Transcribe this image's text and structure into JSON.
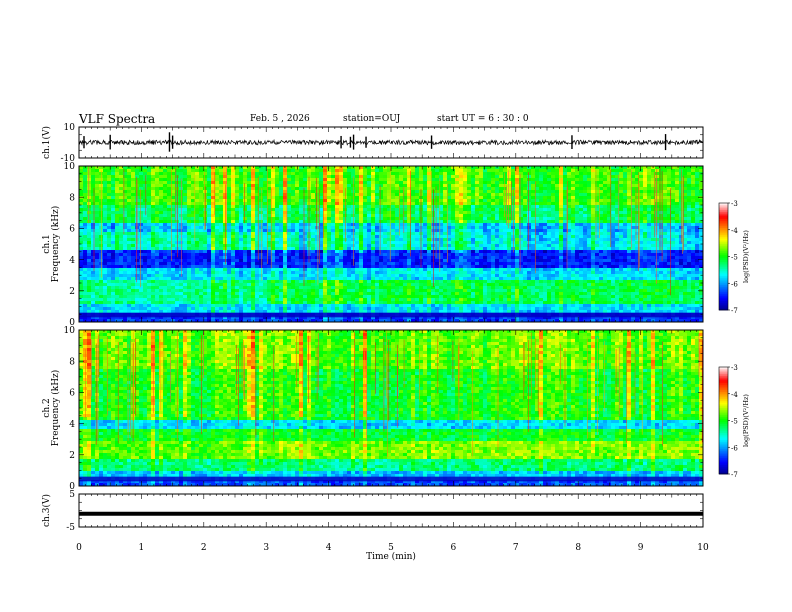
{
  "header": {
    "title": "VLF Spectra",
    "date": "Feb. 5 , 2026",
    "station": "station=OUJ",
    "start": "start UT =  6 : 30 : 0"
  },
  "colors": {
    "colormap": [
      "#00008f",
      "#0000ff",
      "#00ffff",
      "#00ff00",
      "#ffff00",
      "#ff0000",
      "#ffffff"
    ],
    "trace": "#000000"
  },
  "chart_data": [
    {
      "type": "line",
      "name": "ch1-waveform",
      "ylabel": "ch.1(V)",
      "ylim": [
        -10,
        10
      ],
      "yticks": [
        "10",
        "-10"
      ],
      "xlim": [
        0,
        10
      ],
      "baseline": 0,
      "approx_band": [
        -1.5,
        1.5
      ],
      "spikes_t_min": [
        0.08,
        0.5,
        1.45,
        1.5,
        4.2,
        4.35,
        4.4,
        4.6,
        5.65,
        7.9,
        9.4
      ]
    },
    {
      "type": "heatmap",
      "name": "ch1-spectrogram",
      "ylabel": "ch.1 Frequency (kHz)",
      "ylim": [
        0,
        10
      ],
      "yticks": [
        "0",
        "2",
        "4",
        "6",
        "8",
        "10"
      ],
      "xlim": [
        0,
        10
      ],
      "colorbar": {
        "label": "log(PSD)(V²/Hz)",
        "range": [
          -7,
          -3
        ],
        "ticks": [
          "-3",
          "-4",
          "-5",
          "-6",
          "-7"
        ]
      }
    },
    {
      "type": "heatmap",
      "name": "ch2-spectrogram",
      "ylabel": "ch.2 Frequency (kHz)",
      "ylim": [
        0,
        10
      ],
      "yticks": [
        "0",
        "2",
        "4",
        "6",
        "8",
        "10"
      ],
      "xlim": [
        0,
        10
      ],
      "colorbar": {
        "label": "log(PSD)(V²/Hz)",
        "range": [
          -7,
          -3
        ],
        "ticks": [
          "-3",
          "-4",
          "-5",
          "-6",
          "-7"
        ]
      }
    },
    {
      "type": "line",
      "name": "ch3-waveform",
      "ylabel": "ch.3(V)",
      "ylim": [
        -5,
        5
      ],
      "yticks": [
        "5",
        "-5"
      ],
      "xlim": [
        0,
        10
      ],
      "baseline": -1
    }
  ],
  "xaxis": {
    "label": "Time (min)",
    "ticks": [
      "0",
      "1",
      "2",
      "3",
      "4",
      "5",
      "6",
      "7",
      "8",
      "9",
      "10"
    ]
  }
}
